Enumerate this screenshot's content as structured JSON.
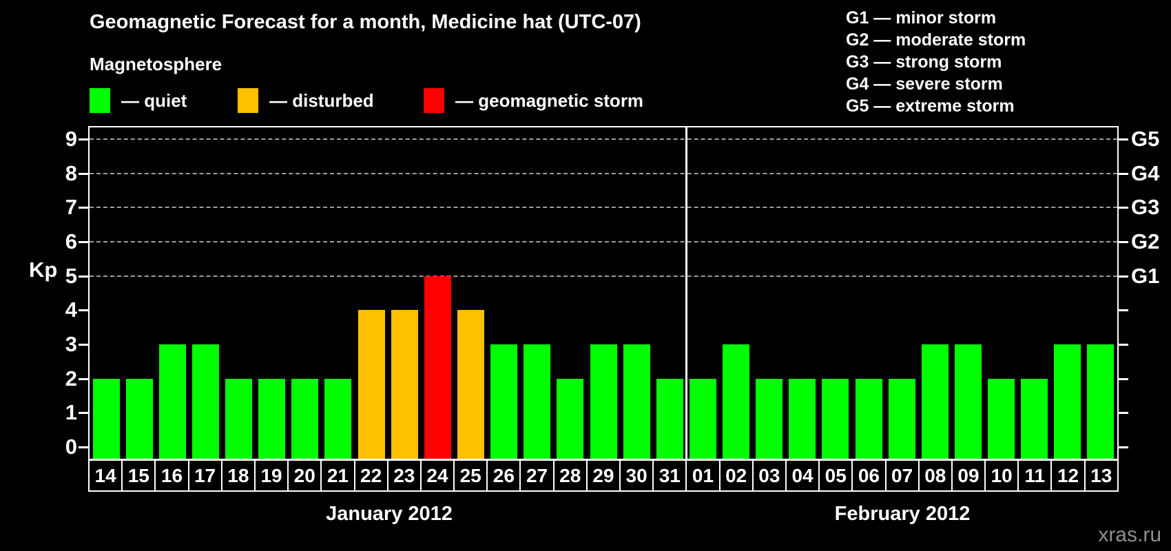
{
  "title": "Geomagnetic Forecast for a month, Medicine hat (UTC-07)",
  "watermark": "xras.ru",
  "legend": {
    "heading": "Magnetosphere",
    "items": [
      {
        "key": "quiet",
        "label": "— quiet"
      },
      {
        "key": "disturbed",
        "label": "— disturbed"
      },
      {
        "key": "storm",
        "label": "— geomagnetic storm"
      }
    ]
  },
  "storm_scale_legend": [
    "G1 — minor storm",
    "G2 — moderate storm",
    "G3 — strong storm",
    "G4 — severe storm",
    "G5 — extreme storm"
  ],
  "colors": {
    "background": "#000000",
    "text": "#ffffff",
    "axis": "#ffffff",
    "grid": "#9f9f9f",
    "watermark": "#8f8f8f",
    "quiet": "#00ff00",
    "disturbed": "#ffc000",
    "storm": "#ff0000"
  },
  "chart_data": {
    "type": "bar",
    "title": "Geomagnetic Forecast for a month, Medicine hat (UTC-07)",
    "ylabel": "Kp",
    "ylim": [
      0,
      9
    ],
    "yticks": [
      0,
      1,
      2,
      3,
      4,
      5,
      6,
      7,
      8,
      9
    ],
    "gridlines_at": [
      5,
      6,
      7,
      8,
      9
    ],
    "grid": "dashed-horizontal-top-half-only",
    "legend_position": "top",
    "right_axis_labels": [
      {
        "value": 5,
        "label": "G1"
      },
      {
        "value": 6,
        "label": "G2"
      },
      {
        "value": 7,
        "label": "G3"
      },
      {
        "value": 8,
        "label": "G4"
      },
      {
        "value": 9,
        "label": "G5"
      }
    ],
    "months": [
      {
        "label": "January 2012",
        "days": [
          {
            "day": "14",
            "kp": 2,
            "status": "quiet"
          },
          {
            "day": "15",
            "kp": 2,
            "status": "quiet"
          },
          {
            "day": "16",
            "kp": 3,
            "status": "quiet"
          },
          {
            "day": "17",
            "kp": 3,
            "status": "quiet"
          },
          {
            "day": "18",
            "kp": 2,
            "status": "quiet"
          },
          {
            "day": "19",
            "kp": 2,
            "status": "quiet"
          },
          {
            "day": "20",
            "kp": 2,
            "status": "quiet"
          },
          {
            "day": "21",
            "kp": 2,
            "status": "quiet"
          },
          {
            "day": "22",
            "kp": 4,
            "status": "disturbed"
          },
          {
            "day": "23",
            "kp": 4,
            "status": "disturbed"
          },
          {
            "day": "24",
            "kp": 5,
            "status": "storm"
          },
          {
            "day": "25",
            "kp": 4,
            "status": "disturbed"
          },
          {
            "day": "26",
            "kp": 3,
            "status": "quiet"
          },
          {
            "day": "27",
            "kp": 3,
            "status": "quiet"
          },
          {
            "day": "28",
            "kp": 2,
            "status": "quiet"
          },
          {
            "day": "29",
            "kp": 3,
            "status": "quiet"
          },
          {
            "day": "30",
            "kp": 3,
            "status": "quiet"
          },
          {
            "day": "31",
            "kp": 2,
            "status": "quiet"
          }
        ]
      },
      {
        "label": "February 2012",
        "days": [
          {
            "day": "01",
            "kp": 2,
            "status": "quiet"
          },
          {
            "day": "02",
            "kp": 3,
            "status": "quiet"
          },
          {
            "day": "03",
            "kp": 2,
            "status": "quiet"
          },
          {
            "day": "04",
            "kp": 2,
            "status": "quiet"
          },
          {
            "day": "05",
            "kp": 2,
            "status": "quiet"
          },
          {
            "day": "06",
            "kp": 2,
            "status": "quiet"
          },
          {
            "day": "07",
            "kp": 2,
            "status": "quiet"
          },
          {
            "day": "08",
            "kp": 3,
            "status": "quiet"
          },
          {
            "day": "09",
            "kp": 3,
            "status": "quiet"
          },
          {
            "day": "10",
            "kp": 2,
            "status": "quiet"
          },
          {
            "day": "11",
            "kp": 2,
            "status": "quiet"
          },
          {
            "day": "12",
            "kp": 3,
            "status": "quiet"
          },
          {
            "day": "13",
            "kp": 3,
            "status": "quiet"
          }
        ]
      }
    ]
  }
}
